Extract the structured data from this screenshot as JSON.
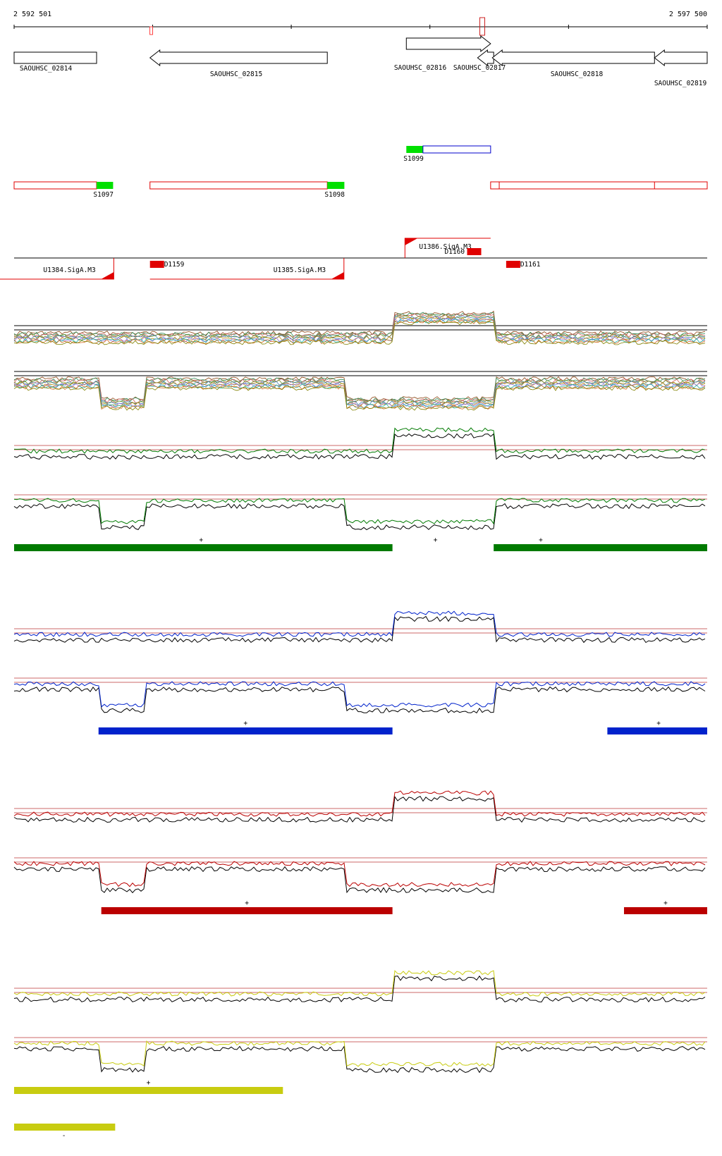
{
  "header": {
    "coord_start": "2 592 501",
    "coord_end": "2 597 500"
  },
  "genes": [
    {
      "label": "SAOUHSC_02814",
      "start": 2592501,
      "end": 2593096,
      "strand": "+"
    },
    {
      "label": "SAOUHSC_02815",
      "start": 2593481,
      "end": 2594760,
      "strand": "-"
    },
    {
      "label": "SAOUHSC_02816",
      "start": 2595330,
      "end": 2595938,
      "strand": "+"
    },
    {
      "label": "SAOUHSC_02817",
      "start": 2595844,
      "end": 2595960,
      "strand": "-"
    },
    {
      "label": "SAOUHSC_02818",
      "start": 2595950,
      "end": 2597120,
      "strand": "-"
    },
    {
      "label": "SAOUHSC_02819",
      "start": 2597120,
      "end": 2597500,
      "strand": "-"
    }
  ],
  "segments_plus": [
    {
      "label": "S1099",
      "start": 2595330,
      "end": 2595938,
      "utr_end": 2595450,
      "colors": {
        "utr": "#00e000",
        "body": "#0000cc"
      }
    }
  ],
  "segments_minus": [
    {
      "label": "S1097",
      "start": 2592501,
      "end": 2593215,
      "utr_start": 2593096
    },
    {
      "label": "S1098",
      "start": 2593481,
      "end": 2594883,
      "utr_start": 2594760
    },
    {
      "label": "",
      "start": 2595938,
      "end": 2597500,
      "utr_start": 2597500
    }
  ],
  "promoters_plus": [
    {
      "label": "U1386.SigA.M3",
      "pos": 2595320
    }
  ],
  "promoters_minus": [
    {
      "label": "U1384.SigA.M3",
      "pos": 2593220
    },
    {
      "label": "U1385.SigA.M3",
      "pos": 2594880
    }
  ],
  "terminators": [
    {
      "label": "D1159",
      "pos": 2593481,
      "strand": "-"
    },
    {
      "label": "D1160",
      "pos": 2595860,
      "strand": "+"
    },
    {
      "label": "D1161",
      "pos": 2596050,
      "strand": "-"
    }
  ],
  "conditions": [
    {
      "color": "#007a00",
      "bars_plus": [
        [
          2592501,
          2595230
        ],
        [
          2595960,
          2597500
        ]
      ],
      "bars_minus": [],
      "plus_marks": [
        2593850,
        2595540,
        2596300
      ],
      "minus_marks": []
    },
    {
      "color": "#0022cc",
      "bars_plus": [
        [
          2593110,
          2595230
        ],
        [
          2596780,
          2597500
        ]
      ],
      "bars_minus": [],
      "plus_marks": [
        2594170,
        2597150
      ],
      "minus_marks": []
    },
    {
      "color": "#bb0000",
      "bars_plus": [
        [
          2593130,
          2595230
        ],
        [
          2596900,
          2597500
        ]
      ],
      "bars_minus": [],
      "plus_marks": [
        2594180,
        2597200
      ],
      "minus_marks": []
    },
    {
      "color": "#c8cc10",
      "bars_plus": [
        [
          2592501,
          2594440
        ]
      ],
      "bars_minus": [
        [
          2592501,
          2593230
        ]
      ],
      "plus_marks": [
        2593470
      ],
      "minus_marks": [
        2592860
      ]
    }
  ]
}
